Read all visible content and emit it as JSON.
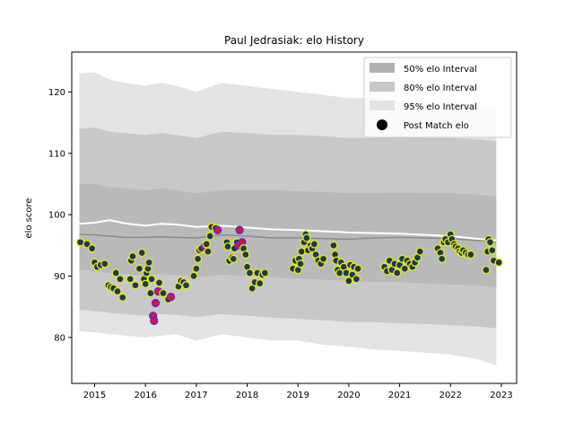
{
  "chart_data": {
    "type": "line",
    "title": "Paul Jedrasiak: elo History",
    "xlabel": "",
    "ylabel": "elo score",
    "xlim": [
      2014.55,
      2023.3
    ],
    "ylim": [
      72.5,
      126.5
    ],
    "x_ticks": [
      2015,
      2016,
      2017,
      2018,
      2019,
      2020,
      2021,
      2022,
      2023
    ],
    "x_tick_labels": [
      "2015",
      "2016",
      "2017",
      "2018",
      "2019",
      "2020",
      "2021",
      "2022",
      "2023"
    ],
    "y_ticks": [
      80,
      90,
      100,
      110,
      120
    ],
    "y_tick_labels": [
      "80",
      "90",
      "100",
      "110",
      "120"
    ],
    "grid": false,
    "legend_position": "top-right",
    "legend": [
      {
        "label": "50% elo Interval",
        "type": "patch",
        "color": "#b0b0b0"
      },
      {
        "label": "80% elo Interval",
        "type": "patch",
        "color": "#c8c8c8"
      },
      {
        "label": "95% elo Interval",
        "type": "patch",
        "color": "#e3e3e3"
      },
      {
        "label": "Post Match elo",
        "type": "marker",
        "color": "#000000"
      }
    ],
    "colors": {
      "band95": "#e3e3e3",
      "band80": "#c8c8c8",
      "band50": "#b9b9b9",
      "median_line": "#8a8a8a",
      "mean_line": "#ffffff",
      "marker_fill": "#1e3a4c",
      "marker_edge": "#e6e62a",
      "loss_edge": "#6a1fd0",
      "loss_fill": "#c0203a"
    },
    "band_x": [
      2014.7,
      2015.0,
      2015.3,
      2015.6,
      2016.0,
      2016.3,
      2016.6,
      2017.0,
      2017.5,
      2018.0,
      2018.5,
      2019.0,
      2019.5,
      2020.0,
      2020.5,
      2021.0,
      2021.5,
      2022.0,
      2022.5,
      2022.9
    ],
    "band95_upper": [
      123,
      123.2,
      122,
      121.5,
      121,
      121.5,
      121,
      120,
      121.5,
      121,
      120.5,
      120,
      119.5,
      119,
      119,
      118.5,
      118.5,
      118.5,
      118,
      117.5
    ],
    "band95_lower": [
      81,
      80.8,
      80.5,
      80.3,
      80,
      80.3,
      80.5,
      79.5,
      80.5,
      80,
      79.5,
      79.5,
      78.8,
      78.5,
      78,
      77.8,
      77.5,
      77.2,
      76.5,
      75.5
    ],
    "band80_upper": [
      114,
      114.2,
      113.5,
      113.3,
      113,
      113.3,
      113,
      112.5,
      113.5,
      113.3,
      113,
      113,
      112.8,
      112.5,
      112.5,
      112.8,
      112.5,
      112.5,
      112.3,
      112
    ],
    "band80_lower": [
      84.5,
      84.3,
      84,
      83.8,
      83.5,
      83.8,
      83.7,
      83.3,
      83.8,
      83.5,
      83.2,
      83,
      82.8,
      82.5,
      82.5,
      82.3,
      82.2,
      82,
      81.8,
      81.5
    ],
    "band50_upper": [
      105,
      105,
      104.5,
      104.3,
      104,
      104.3,
      104,
      103.5,
      104,
      104,
      104,
      103.8,
      103.7,
      103.5,
      103.5,
      103.6,
      103.5,
      103.5,
      103.3,
      103
    ],
    "band50_lower": [
      91,
      90.8,
      90.5,
      90.3,
      90,
      90.3,
      90.2,
      89.8,
      90.2,
      90,
      89.8,
      89.6,
      89.4,
      89.2,
      89,
      89,
      88.8,
      88.6,
      88.5,
      88.2
    ],
    "median_line": [
      96.8,
      96.7,
      96.5,
      96.3,
      96.3,
      96.4,
      96.3,
      96.2,
      96.7,
      96.5,
      96.2,
      96.2,
      96.1,
      96.0,
      96.2,
      96.3,
      96.2,
      96.1,
      95.8,
      95.5
    ],
    "mean_line": [
      98.5,
      98.7,
      99.1,
      98.6,
      98.2,
      98.5,
      98.4,
      98.0,
      98.2,
      97.9,
      97.6,
      97.5,
      97.3,
      97.1,
      97.0,
      96.9,
      96.7,
      96.5,
      96.1,
      95.8
    ],
    "points": [
      {
        "x": 2014.72,
        "y": 95.5
      },
      {
        "x": 2014.85,
        "y": 95.2
      },
      {
        "x": 2014.95,
        "y": 94.5
      },
      {
        "x": 2015.0,
        "y": 92.2
      },
      {
        "x": 2015.05,
        "y": 91.5
      },
      {
        "x": 2015.12,
        "y": 91.8
      },
      {
        "x": 2015.2,
        "y": 92.0
      },
      {
        "x": 2015.27,
        "y": 88.5
      },
      {
        "x": 2015.32,
        "y": 88.2
      },
      {
        "x": 2015.37,
        "y": 88.0
      },
      {
        "x": 2015.42,
        "y": 90.5
      },
      {
        "x": 2015.45,
        "y": 87.5
      },
      {
        "x": 2015.5,
        "y": 89.5
      },
      {
        "x": 2015.55,
        "y": 86.5
      },
      {
        "x": 2015.7,
        "y": 89.5
      },
      {
        "x": 2015.72,
        "y": 92.5
      },
      {
        "x": 2015.75,
        "y": 93.2
      },
      {
        "x": 2015.8,
        "y": 88.5
      },
      {
        "x": 2015.88,
        "y": 91.2
      },
      {
        "x": 2015.93,
        "y": 93.8
      },
      {
        "x": 2015.97,
        "y": 89.5
      },
      {
        "x": 2016.0,
        "y": 88.7
      },
      {
        "x": 2016.02,
        "y": 90.5
      },
      {
        "x": 2016.05,
        "y": 91.2
      },
      {
        "x": 2016.07,
        "y": 92.2
      },
      {
        "x": 2016.1,
        "y": 87.2
      },
      {
        "x": 2016.12,
        "y": 89.5
      },
      {
        "x": 2016.15,
        "y": 83.5,
        "loss": true
      },
      {
        "x": 2016.17,
        "y": 82.7,
        "loss": true
      },
      {
        "x": 2016.2,
        "y": 85.6,
        "loss": true
      },
      {
        "x": 2016.25,
        "y": 87.5,
        "loss": true
      },
      {
        "x": 2016.27,
        "y": 88.9
      },
      {
        "x": 2016.35,
        "y": 87.2
      },
      {
        "x": 2016.45,
        "y": 86.2
      },
      {
        "x": 2016.5,
        "y": 86.6,
        "loss": true
      },
      {
        "x": 2016.65,
        "y": 88.3
      },
      {
        "x": 2016.7,
        "y": 89.2
      },
      {
        "x": 2016.75,
        "y": 89.0
      },
      {
        "x": 2016.8,
        "y": 88.5
      },
      {
        "x": 2016.95,
        "y": 90.0
      },
      {
        "x": 2017.0,
        "y": 91.2
      },
      {
        "x": 2017.03,
        "y": 92.8
      },
      {
        "x": 2017.06,
        "y": 94.2
      },
      {
        "x": 2017.1,
        "y": 94.5
      },
      {
        "x": 2017.17,
        "y": 94.8,
        "loss": true
      },
      {
        "x": 2017.2,
        "y": 95.2
      },
      {
        "x": 2017.23,
        "y": 94.0
      },
      {
        "x": 2017.27,
        "y": 96.5
      },
      {
        "x": 2017.3,
        "y": 98.0
      },
      {
        "x": 2017.38,
        "y": 97.8
      },
      {
        "x": 2017.42,
        "y": 97.5,
        "loss": true
      },
      {
        "x": 2017.6,
        "y": 95.5
      },
      {
        "x": 2017.62,
        "y": 94.8
      },
      {
        "x": 2017.65,
        "y": 92.5
      },
      {
        "x": 2017.7,
        "y": 93.0
      },
      {
        "x": 2017.73,
        "y": 92.8
      },
      {
        "x": 2017.75,
        "y": 94.5
      },
      {
        "x": 2017.8,
        "y": 95.5
      },
      {
        "x": 2017.83,
        "y": 95.0,
        "loss": true
      },
      {
        "x": 2017.85,
        "y": 97.5,
        "loss": true
      },
      {
        "x": 2017.9,
        "y": 95.5,
        "loss": true
      },
      {
        "x": 2017.93,
        "y": 94.5
      },
      {
        "x": 2017.97,
        "y": 93.5
      },
      {
        "x": 2018.0,
        "y": 91.5
      },
      {
        "x": 2018.05,
        "y": 90.5
      },
      {
        "x": 2018.1,
        "y": 88.0
      },
      {
        "x": 2018.15,
        "y": 89.0
      },
      {
        "x": 2018.2,
        "y": 90.5
      },
      {
        "x": 2018.25,
        "y": 88.8
      },
      {
        "x": 2018.3,
        "y": 90.2
      },
      {
        "x": 2018.35,
        "y": 90.5
      },
      {
        "x": 2018.9,
        "y": 91.2
      },
      {
        "x": 2018.95,
        "y": 92.5
      },
      {
        "x": 2019.0,
        "y": 91.0
      },
      {
        "x": 2019.02,
        "y": 92.8
      },
      {
        "x": 2019.05,
        "y": 92.0
      },
      {
        "x": 2019.07,
        "y": 94.0
      },
      {
        "x": 2019.12,
        "y": 95.5
      },
      {
        "x": 2019.15,
        "y": 96.8
      },
      {
        "x": 2019.17,
        "y": 96.2
      },
      {
        "x": 2019.2,
        "y": 94.2
      },
      {
        "x": 2019.25,
        "y": 95.0
      },
      {
        "x": 2019.28,
        "y": 94.5
      },
      {
        "x": 2019.32,
        "y": 95.2
      },
      {
        "x": 2019.35,
        "y": 93.5
      },
      {
        "x": 2019.4,
        "y": 92.5
      },
      {
        "x": 2019.45,
        "y": 92.0
      },
      {
        "x": 2019.5,
        "y": 92.8
      },
      {
        "x": 2019.7,
        "y": 95.0
      },
      {
        "x": 2019.73,
        "y": 93.5
      },
      {
        "x": 2019.75,
        "y": 92.5
      },
      {
        "x": 2019.78,
        "y": 91.0
      },
      {
        "x": 2019.82,
        "y": 90.5
      },
      {
        "x": 2019.85,
        "y": 92.2
      },
      {
        "x": 2019.9,
        "y": 91.5
      },
      {
        "x": 2019.95,
        "y": 90.5
      },
      {
        "x": 2020.0,
        "y": 89.2
      },
      {
        "x": 2020.03,
        "y": 91.8
      },
      {
        "x": 2020.07,
        "y": 90.2
      },
      {
        "x": 2020.1,
        "y": 91.5
      },
      {
        "x": 2020.15,
        "y": 89.5
      },
      {
        "x": 2020.18,
        "y": 91.2
      },
      {
        "x": 2020.7,
        "y": 91.5
      },
      {
        "x": 2020.75,
        "y": 90.8
      },
      {
        "x": 2020.8,
        "y": 92.5
      },
      {
        "x": 2020.85,
        "y": 91.0
      },
      {
        "x": 2020.9,
        "y": 92.0
      },
      {
        "x": 2020.95,
        "y": 90.5
      },
      {
        "x": 2021.0,
        "y": 91.8
      },
      {
        "x": 2021.05,
        "y": 92.8
      },
      {
        "x": 2021.1,
        "y": 91.2
      },
      {
        "x": 2021.15,
        "y": 92.5
      },
      {
        "x": 2021.2,
        "y": 92.0
      },
      {
        "x": 2021.25,
        "y": 91.5
      },
      {
        "x": 2021.3,
        "y": 92.2
      },
      {
        "x": 2021.35,
        "y": 93.0
      },
      {
        "x": 2021.4,
        "y": 94.0
      },
      {
        "x": 2021.75,
        "y": 94.5
      },
      {
        "x": 2021.8,
        "y": 93.8
      },
      {
        "x": 2021.83,
        "y": 92.8
      },
      {
        "x": 2021.87,
        "y": 95.5
      },
      {
        "x": 2021.9,
        "y": 96.0
      },
      {
        "x": 2021.95,
        "y": 95.5
      },
      {
        "x": 2022.0,
        "y": 96.8
      },
      {
        "x": 2022.03,
        "y": 96.0
      },
      {
        "x": 2022.07,
        "y": 95.2
      },
      {
        "x": 2022.1,
        "y": 94.8
      },
      {
        "x": 2022.15,
        "y": 94.5
      },
      {
        "x": 2022.18,
        "y": 94.0
      },
      {
        "x": 2022.22,
        "y": 93.8
      },
      {
        "x": 2022.25,
        "y": 94.2
      },
      {
        "x": 2022.3,
        "y": 93.8
      },
      {
        "x": 2022.35,
        "y": 93.5
      },
      {
        "x": 2022.4,
        "y": 93.5
      },
      {
        "x": 2022.7,
        "y": 91.0
      },
      {
        "x": 2022.73,
        "y": 94.0
      },
      {
        "x": 2022.75,
        "y": 96.0
      },
      {
        "x": 2022.78,
        "y": 95.5
      },
      {
        "x": 2022.82,
        "y": 94.2
      },
      {
        "x": 2022.85,
        "y": 92.5
      },
      {
        "x": 2022.95,
        "y": 92.2
      }
    ]
  }
}
